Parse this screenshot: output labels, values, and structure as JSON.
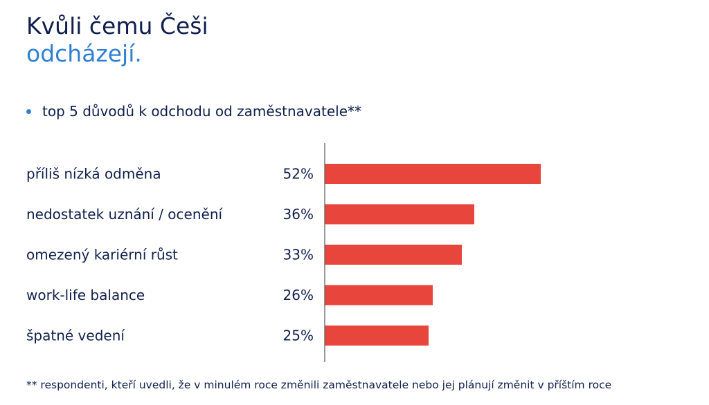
{
  "title": {
    "line1": "Kvůli čemu Češi",
    "line2": "odcházejí."
  },
  "subtitle": "top 5 důvodů k odchodu od zaměstnavatele**",
  "footnote": "** respondenti, kteří uvedli, že v minulém roce změnili zaměstnavatele nebo jej plánují změnit v příštím roce",
  "colors": {
    "bar": "#e8453c",
    "title_dark": "#0f1f4d",
    "title_accent": "#2f7fd3",
    "axis": "#555555"
  },
  "chart_data": {
    "type": "bar",
    "orientation": "horizontal",
    "categories": [
      "příliš nízká odměna",
      "nedostatek uznání / ocenění",
      "omezený kariérní růst",
      "work-life balance",
      "špatné vedení"
    ],
    "values": [
      52,
      36,
      33,
      26,
      25
    ],
    "value_labels": [
      "52%",
      "36%",
      "33%",
      "26%",
      "25%"
    ],
    "xlim": [
      0,
      100
    ],
    "grid": false,
    "legend": "none"
  }
}
